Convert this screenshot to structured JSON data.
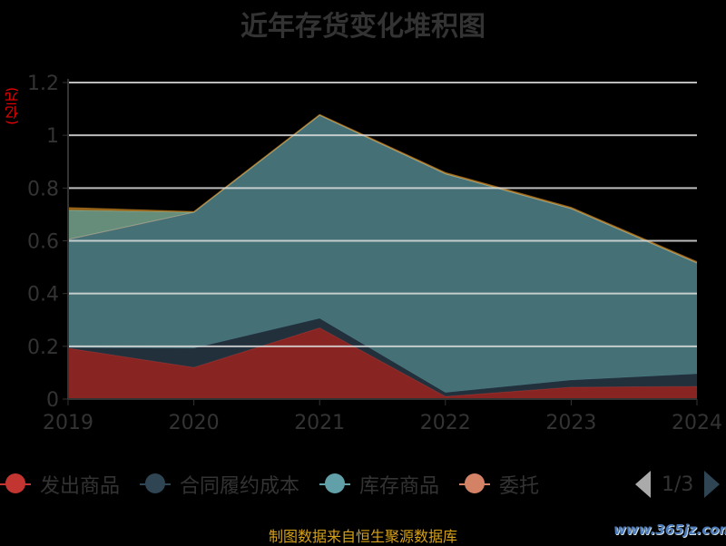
{
  "chart_data": {
    "type": "area",
    "stacked": true,
    "title": "近年存货变化堆积图",
    "ylabel": "(亿元)",
    "xlabel": "",
    "x": [
      "2019",
      "2020",
      "2021",
      "2022",
      "2023",
      "2024"
    ],
    "ylim": [
      0,
      1.2
    ],
    "yticks": [
      "0",
      "0.2",
      "0.4",
      "0.6",
      "0.8",
      "1",
      "1.2"
    ],
    "ytick_values": [
      0,
      0.2,
      0.4,
      0.6,
      0.8,
      1,
      1.2
    ],
    "grid": true,
    "legend_position": "bottom",
    "series": [
      {
        "name": "发出商品",
        "color": "#c23531",
        "values": [
          0.193,
          0.12,
          0.27,
          0.01,
          0.045,
          0.048
        ]
      },
      {
        "name": "合同履约成本",
        "color": "#2f4554",
        "values": [
          0.002,
          0.073,
          0.036,
          0.015,
          0.027,
          0.048
        ]
      },
      {
        "name": "库存商品",
        "color": "#61a0a8",
        "values": [
          0.41,
          0.515,
          0.77,
          0.829,
          0.65,
          0.42
        ]
      },
      {
        "name": "委托",
        "color": "#d48265",
        "values": [
          0,
          0,
          0,
          0,
          0,
          0
        ]
      },
      {
        "name": "",
        "color": "#91c7ae",
        "values": [
          0.111,
          0,
          0,
          0,
          0,
          0
        ]
      },
      {
        "name": "",
        "color": "#ca8622",
        "values": [
          0.01,
          0.003,
          0.003,
          0.005,
          0.005,
          0.005
        ]
      }
    ]
  },
  "legend": {
    "items": [
      "发出商品",
      "合同履约成本",
      "库存商品",
      "委托"
    ],
    "colors": [
      "#c23531",
      "#2f4554",
      "#61a0a8",
      "#d48265"
    ],
    "page": "1/3"
  },
  "source": "制图数据来自恒生聚源数据库",
  "watermark": "www.365jz.com"
}
